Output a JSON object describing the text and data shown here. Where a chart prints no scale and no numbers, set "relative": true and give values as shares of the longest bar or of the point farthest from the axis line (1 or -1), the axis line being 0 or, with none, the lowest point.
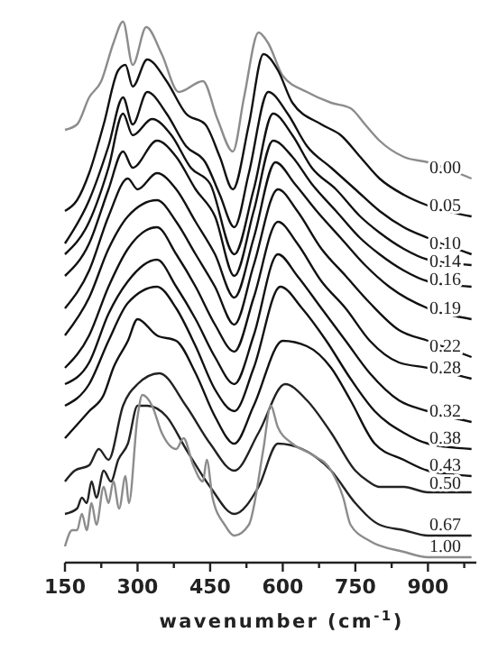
{
  "chart_data": {
    "type": "line",
    "relative": true,
    "xlabel": "wavenumber (cm$^{-1}$)",
    "xlim": [
      150,
      1000
    ],
    "xticks": [
      150,
      {
        "value": 225,
        "label": null
      },
      300,
      {
        "value": 375,
        "label": null
      },
      450,
      {
        "value": 525,
        "label": null
      },
      600,
      {
        "value": 675,
        "label": null
      },
      750,
      {
        "value": 825,
        "label": null
      },
      900,
      {
        "value": 975,
        "label": null
      }
    ],
    "tick_labels": "x",
    "line_style": "solid",
    "series": [
      {
        "name": "0.00",
        "color": "#8c8c8c",
        "x": [
          150,
          175,
          200,
          225,
          250,
          270,
          290,
          318,
          350,
          385,
          435,
          465,
          497,
          520,
          550,
          570,
          600,
          650,
          700,
          740,
          770,
          800,
          850,
          900,
          990
        ],
        "values": [
          0.8,
          0.81,
          0.86,
          0.89,
          0.96,
          1.0,
          0.92,
          0.99,
          0.94,
          0.87,
          0.89,
          0.82,
          0.76,
          0.86,
          0.98,
          0.96,
          0.9,
          0.87,
          0.85,
          0.84,
          0.81,
          0.78,
          0.75,
          0.74,
          0.71
        ]
      },
      {
        "name": "0.05",
        "color": "#111111",
        "x": [
          150,
          175,
          200,
          230,
          260,
          275,
          290,
          320,
          360,
          400,
          440,
          470,
          497,
          530,
          560,
          590,
          620,
          680,
          720,
          760,
          800,
          850,
          900,
          990
        ],
        "values": [
          0.65,
          0.67,
          0.72,
          0.81,
          0.91,
          0.92,
          0.88,
          0.93,
          0.89,
          0.83,
          0.81,
          0.75,
          0.69,
          0.81,
          0.94,
          0.91,
          0.85,
          0.81,
          0.79,
          0.75,
          0.71,
          0.68,
          0.66,
          0.64
        ]
      },
      {
        "name": "0.10",
        "color": "#111111",
        "x": [
          150,
          200,
          240,
          270,
          290,
          320,
          360,
          400,
          440,
          470,
          500,
          530,
          570,
          610,
          650,
          700,
          750,
          800,
          850,
          900,
          990
        ],
        "values": [
          0.59,
          0.67,
          0.77,
          0.86,
          0.81,
          0.87,
          0.83,
          0.77,
          0.74,
          0.68,
          0.62,
          0.72,
          0.87,
          0.83,
          0.77,
          0.73,
          0.69,
          0.65,
          0.62,
          0.6,
          0.57
        ]
      },
      {
        "name": "0.14",
        "color": "#111111",
        "x": [
          150,
          200,
          240,
          270,
          290,
          330,
          370,
          410,
          450,
          500,
          540,
          580,
          620,
          660,
          710,
          760,
          800,
          850,
          900,
          990
        ],
        "values": [
          0.57,
          0.63,
          0.73,
          0.83,
          0.79,
          0.82,
          0.79,
          0.73,
          0.7,
          0.57,
          0.69,
          0.83,
          0.79,
          0.73,
          0.69,
          0.64,
          0.61,
          0.58,
          0.56,
          0.55
        ]
      },
      {
        "name": "0.16",
        "color": "#111111",
        "x": [
          150,
          200,
          240,
          270,
          290,
          340,
          380,
          420,
          460,
          500,
          540,
          580,
          620,
          660,
          710,
          760,
          800,
          850,
          900,
          990
        ],
        "values": [
          0.53,
          0.59,
          0.69,
          0.76,
          0.73,
          0.78,
          0.75,
          0.69,
          0.64,
          0.53,
          0.65,
          0.78,
          0.75,
          0.7,
          0.65,
          0.6,
          0.57,
          0.54,
          0.52,
          0.51
        ]
      },
      {
        "name": "0.19",
        "color": "#111111",
        "x": [
          150,
          200,
          240,
          280,
          300,
          340,
          380,
          420,
          460,
          500,
          540,
          585,
          625,
          670,
          720,
          770,
          820,
          900,
          990
        ],
        "values": [
          0.47,
          0.54,
          0.64,
          0.71,
          0.69,
          0.72,
          0.69,
          0.63,
          0.57,
          0.49,
          0.6,
          0.74,
          0.7,
          0.65,
          0.6,
          0.55,
          0.51,
          0.47,
          0.45
        ]
      },
      {
        "name": "0.22",
        "color": "#111111",
        "x": [
          150,
          200,
          240,
          280,
          340,
          380,
          420,
          460,
          500,
          540,
          590,
          630,
          680,
          730,
          780,
          840,
          900,
          990
        ],
        "values": [
          0.42,
          0.49,
          0.58,
          0.64,
          0.67,
          0.63,
          0.57,
          0.51,
          0.44,
          0.55,
          0.69,
          0.65,
          0.58,
          0.53,
          0.48,
          0.43,
          0.41,
          0.38
        ]
      },
      {
        "name": "0.28",
        "color": "#111111",
        "x": [
          150,
          200,
          240,
          280,
          340,
          380,
          420,
          460,
          500,
          540,
          590,
          630,
          680,
          730,
          780,
          840,
          900,
          990
        ],
        "values": [
          0.36,
          0.42,
          0.51,
          0.58,
          0.62,
          0.57,
          0.51,
          0.44,
          0.39,
          0.49,
          0.63,
          0.59,
          0.52,
          0.47,
          0.41,
          0.37,
          0.36,
          0.34
        ]
      },
      {
        "name": "0.32",
        "color": "#111111",
        "x": [
          150,
          200,
          240,
          280,
          340,
          380,
          420,
          460,
          500,
          540,
          590,
          630,
          680,
          730,
          780,
          840,
          900,
          990
        ],
        "values": [
          0.33,
          0.37,
          0.46,
          0.52,
          0.56,
          0.51,
          0.45,
          0.38,
          0.33,
          0.42,
          0.57,
          0.53,
          0.47,
          0.41,
          0.35,
          0.3,
          0.28,
          0.26
        ]
      },
      {
        "name": "0.38",
        "color": "#111111",
        "x": [
          150,
          200,
          240,
          280,
          340,
          380,
          420,
          460,
          500,
          540,
          595,
          640,
          690,
          740,
          790,
          850,
          900,
          990
        ],
        "values": [
          0.29,
          0.33,
          0.41,
          0.48,
          0.51,
          0.47,
          0.4,
          0.32,
          0.28,
          0.36,
          0.51,
          0.47,
          0.41,
          0.34,
          0.28,
          0.24,
          0.22,
          0.21
        ]
      },
      {
        "name": "0.43",
        "color": "#111111",
        "x": [
          150,
          200,
          230,
          250,
          280,
          300,
          340,
          380,
          420,
          460,
          500,
          540,
          600,
          650,
          700,
          740,
          790,
          850,
          900,
          990
        ],
        "values": [
          0.23,
          0.28,
          0.31,
          0.36,
          0.41,
          0.45,
          0.42,
          0.41,
          0.35,
          0.27,
          0.22,
          0.29,
          0.41,
          0.4,
          0.36,
          0.3,
          0.22,
          0.19,
          0.17,
          0.16
        ]
      },
      {
        "name": "0.50",
        "color": "#222222",
        "x": [
          150,
          170,
          200,
          220,
          240,
          270,
          300,
          345,
          400,
          450,
          500,
          550,
          605,
          650,
          700,
          750,
          777,
          800,
          850,
          900,
          990
        ],
        "values": [
          0.15,
          0.17,
          0.18,
          0.21,
          0.19,
          0.29,
          0.33,
          0.35,
          0.29,
          0.22,
          0.17,
          0.24,
          0.33,
          0.3,
          0.24,
          0.17,
          0.15,
          0.14,
          0.14,
          0.13,
          0.13
        ]
      },
      {
        "name": "0.67",
        "color": "#222222",
        "x": [
          150,
          175,
          185,
          195,
          205,
          215,
          230,
          245,
          260,
          280,
          300,
          320,
          360,
          400,
          450,
          500,
          550,
          590,
          640,
          700,
          750,
          800,
          850,
          900,
          990
        ],
        "values": [
          0.09,
          0.1,
          0.12,
          0.11,
          0.15,
          0.12,
          0.17,
          0.15,
          0.19,
          0.22,
          0.29,
          0.29,
          0.27,
          0.21,
          0.14,
          0.09,
          0.14,
          0.22,
          0.21,
          0.17,
          0.11,
          0.07,
          0.06,
          0.05,
          0.05
        ]
      },
      {
        "name": "1.00",
        "color": "#8c8c8c",
        "x": [
          150,
          165,
          175,
          185,
          195,
          205,
          215,
          230,
          240,
          250,
          262,
          275,
          282,
          300,
          310,
          330,
          350,
          380,
          395,
          415,
          435,
          443,
          455,
          480,
          500,
          530,
          560,
          575,
          590,
          620,
          660,
          700,
          725,
          740,
          780,
          850,
          900,
          990
        ],
        "values": [
          0.03,
          0.06,
          0.06,
          0.09,
          0.06,
          0.11,
          0.07,
          0.14,
          0.11,
          0.15,
          0.1,
          0.16,
          0.11,
          0.27,
          0.31,
          0.29,
          0.24,
          0.21,
          0.23,
          0.18,
          0.15,
          0.19,
          0.12,
          0.07,
          0.05,
          0.07,
          0.21,
          0.29,
          0.25,
          0.22,
          0.2,
          0.17,
          0.12,
          0.07,
          0.04,
          0.02,
          0.01,
          0.01
        ]
      }
    ]
  }
}
